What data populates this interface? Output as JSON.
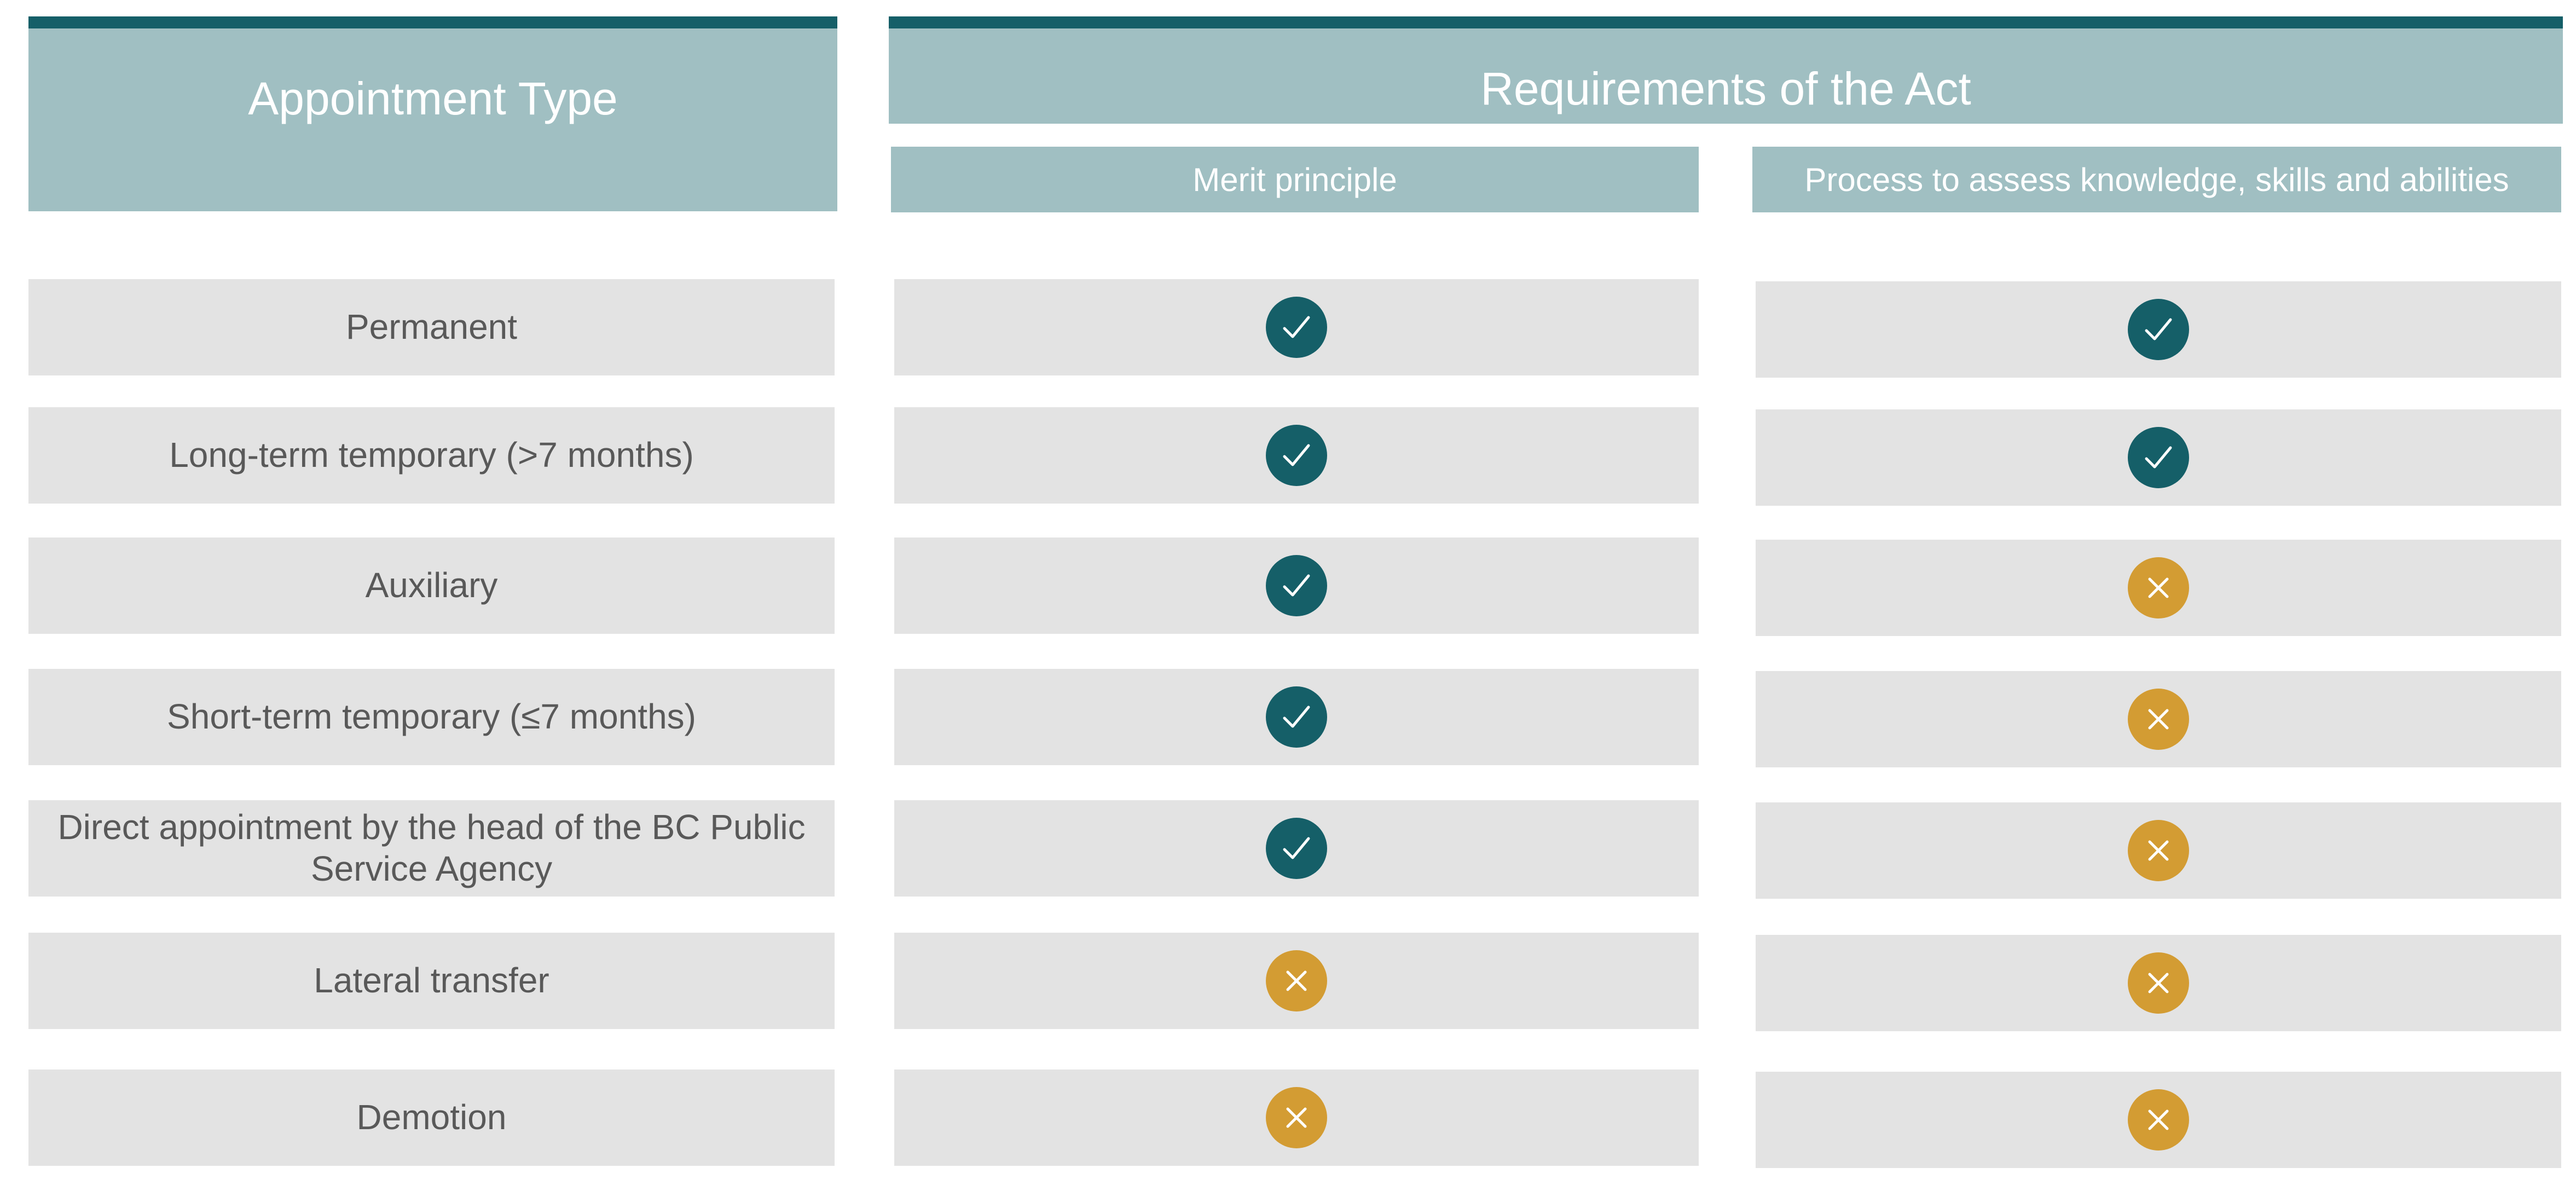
{
  "header": {
    "appointment_type": "Appointment Type",
    "requirements": "Requirements of the Act",
    "col_merit": "Merit principle",
    "col_process": "Process to assess knowledge, skills and abilities"
  },
  "colors": {
    "header_bg": "#a0bfc2",
    "header_bar": "#155f68",
    "row_bg": "#e3e3e3",
    "yes": "#155f68",
    "no": "#d39c33"
  },
  "rows": [
    {
      "type": "Permanent",
      "merit": "yes",
      "process": "yes"
    },
    {
      "type": "Long-term temporary (>7 months)",
      "merit": "yes",
      "process": "yes"
    },
    {
      "type": "Auxiliary",
      "merit": "yes",
      "process": "no"
    },
    {
      "type": "Short-term temporary (≤7 months)",
      "merit": "yes",
      "process": "no"
    },
    {
      "type": "Direct appointment by the head of the BC Public Service Agency",
      "merit": "yes",
      "process": "no"
    },
    {
      "type": "Lateral transfer",
      "merit": "no",
      "process": "no"
    },
    {
      "type": "Demotion",
      "merit": "no",
      "process": "no"
    }
  ],
  "icons": {
    "yes": "check-circle-icon",
    "no": "x-circle-icon"
  }
}
